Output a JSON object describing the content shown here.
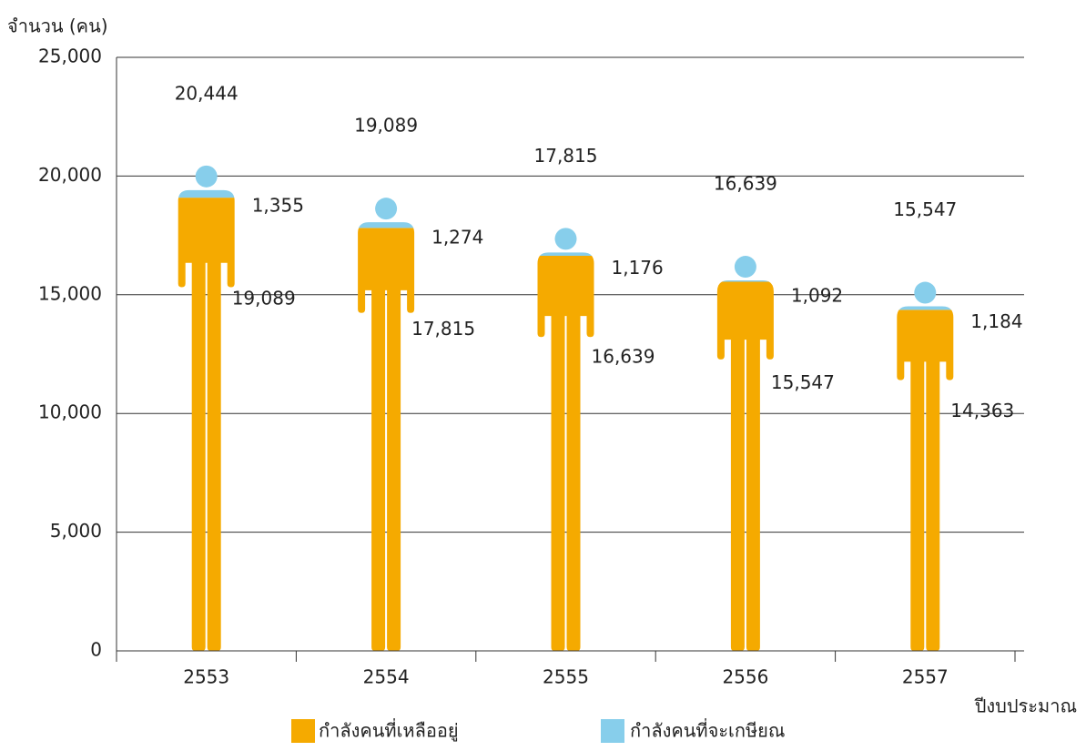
{
  "chart_data": {
    "type": "pictogram-stacked",
    "y_label": "จำนวน (คน)",
    "x_label": "ปีงบประมาณ",
    "categories": [
      "2553",
      "2554",
      "2555",
      "2556",
      "2557"
    ],
    "series": [
      {
        "name": "กำลังคนที่เหลืออยู่",
        "color": "#f5aa00",
        "values": [
          19089,
          17815,
          16639,
          15547,
          14363
        ],
        "value_labels": [
          "19,089",
          "17,815",
          "16,639",
          "15,547",
          "14,363"
        ]
      },
      {
        "name": "กำลังคนที่จะเกษียณ",
        "color": "#87ceeb",
        "values": [
          1355,
          1274,
          1176,
          1092,
          1184
        ],
        "value_labels": [
          "1,355",
          "1,274",
          "1,176",
          "1,092",
          "1,184"
        ]
      }
    ],
    "totals": [
      20444,
      19089,
      17815,
      16639,
      15547
    ],
    "total_labels": [
      "20,444",
      "19,089",
      "17,815",
      "16,639",
      "15,547"
    ],
    "ylim": [
      0,
      25000
    ],
    "yticks": [
      0,
      {
        "value": 5000,
        "label": "5,000"
      },
      {
        "value": 10000,
        "label": "10,000"
      },
      {
        "value": 15000,
        "label": "15,000"
      },
      {
        "value": 20000,
        "label": "20,000"
      },
      {
        "value": 25000,
        "label": "25,000"
      }
    ],
    "grid": true
  }
}
